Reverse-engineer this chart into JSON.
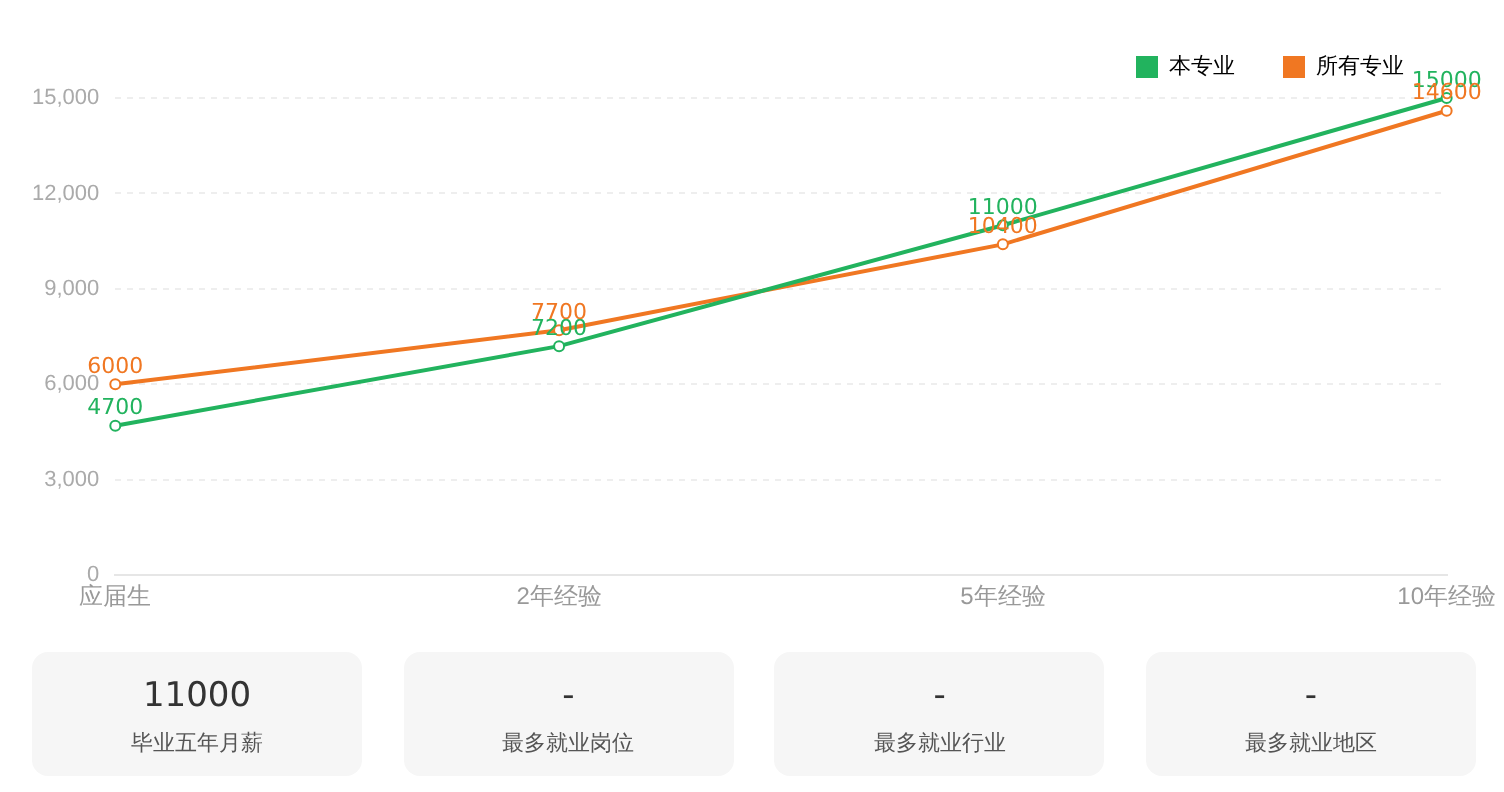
{
  "chart_data": [
    {
      "type": "line",
      "categories": [
        "应届生",
        "2年经验",
        "5年经验",
        "10年经验"
      ],
      "series": [
        {
          "name": "本专业",
          "color": "#22b35e",
          "values": [
            4700,
            7200,
            11000,
            15000
          ]
        },
        {
          "name": "所有专业",
          "color": "#f07722",
          "values": [
            6000,
            7700,
            10400,
            14600
          ]
        }
      ],
      "ylim": [
        0,
        15000
      ],
      "yticks": [
        {
          "value": 0,
          "label": "0"
        },
        {
          "value": 3000,
          "label": "3,000"
        },
        {
          "value": 6000,
          "label": "6,000"
        },
        {
          "value": 9000,
          "label": "9,000"
        },
        {
          "value": 12000,
          "label": "12,000"
        },
        {
          "value": 15000,
          "label": "15,000"
        }
      ],
      "grid": "y",
      "legend": "top right",
      "marker": "circle",
      "line_style": "solid",
      "data_labels": true
    },
    {
      "type": "other",
      "annotations": [
        "11000",
        "毕业五年月薪",
        "-",
        "最多就业岗位",
        "-",
        "最多就业行业",
        "-",
        "最多就业地区"
      ]
    }
  ]
}
